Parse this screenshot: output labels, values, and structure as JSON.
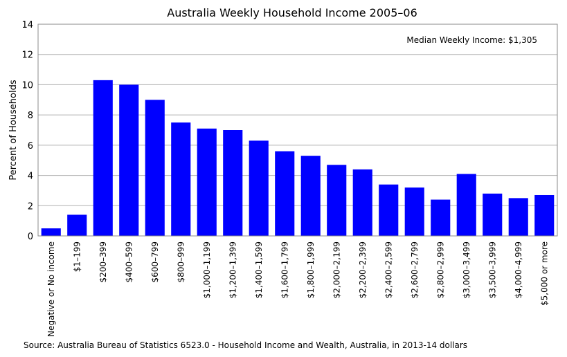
{
  "chart_data": {
    "type": "bar",
    "title": "Australia Weekly Household Income 2005–06",
    "xlabel": "",
    "ylabel": "Percent of Households",
    "ylim": [
      0,
      14
    ],
    "yticks": [
      0,
      2,
      4,
      6,
      8,
      10,
      12,
      14
    ],
    "grid": true,
    "bar_color": "#0000ff",
    "annotation": "Median Weekly Income: $1,305",
    "source": "Source: Australia Bureau of Statistics 6523.0 - Household Income and Wealth, Australia, in 2013-14 dollars",
    "categories": [
      "Negative or No income",
      "$1–199",
      "$200–399",
      "$400–599",
      "$600–799",
      "$800–999",
      "$1,000–1,199",
      "$1,200–1,399",
      "$1,400–1,599",
      "$1,600–1,799",
      "$1,800–1,999",
      "$2,000–2,199",
      "$2,200–2,399",
      "$2,400–2,599",
      "$2,600–2,799",
      "$2,800–2,999",
      "$3,000–3,499",
      "$3,500–3,999",
      "$4,000–4,999",
      "$5,000 or more"
    ],
    "values": [
      0.5,
      1.4,
      10.3,
      10.0,
      9.0,
      7.5,
      7.1,
      7.0,
      6.3,
      5.6,
      5.3,
      4.7,
      4.4,
      3.4,
      3.2,
      2.4,
      4.1,
      2.8,
      2.5,
      2.7
    ]
  }
}
